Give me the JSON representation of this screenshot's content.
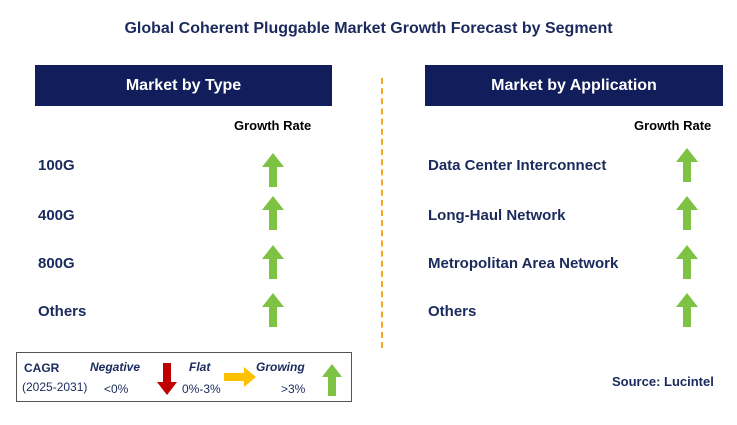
{
  "title": "Global Coherent Pluggable Market Growth Forecast by Segment",
  "left_panel": {
    "header": "Market by Type",
    "growth_label": "Growth Rate",
    "rows": [
      {
        "label": "100G",
        "trend": "growing"
      },
      {
        "label": "400G",
        "trend": "growing"
      },
      {
        "label": "800G",
        "trend": "growing"
      },
      {
        "label": "Others",
        "trend": "growing"
      }
    ]
  },
  "right_panel": {
    "header": "Market by Application",
    "growth_label": "Growth Rate",
    "rows": [
      {
        "label": "Data Center Interconnect",
        "trend": "growing"
      },
      {
        "label": "Long-Haul Network",
        "trend": "growing"
      },
      {
        "label": "Metropolitan Area Network",
        "trend": "growing"
      },
      {
        "label": "Others",
        "trend": "growing"
      }
    ]
  },
  "legend": {
    "cagr_label": "CAGR",
    "period": "(2025-2031)",
    "negative": {
      "label": "Negative",
      "range": "<0%",
      "icon": "red-down-arrow-icon"
    },
    "flat": {
      "label": "Flat",
      "range": "0%-3%",
      "icon": "orange-right-arrow-icon"
    },
    "growing": {
      "label": "Growing",
      "range": ">3%",
      "icon": "green-up-arrow-icon"
    }
  },
  "source": "Source: Lucintel",
  "colors": {
    "header_bg": "#121d5c",
    "title_text": "#1a2a5c",
    "growing": "#7dc242",
    "negative": "#c00000",
    "flat": "#ffc000",
    "divider": "#f5a623"
  }
}
